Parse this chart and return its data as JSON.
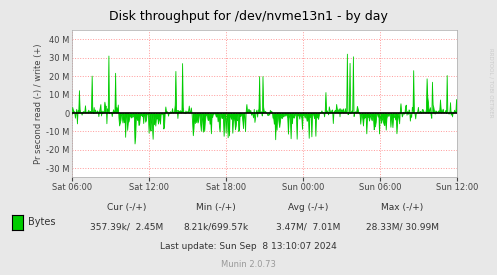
{
  "title": "Disk throughput for /dev/nvme13n1 - by day",
  "ylabel": "Pr second read (-) / write (+)",
  "bg_color": "#e8e8e8",
  "plot_bg_color": "#ffffff",
  "grid_color": "#ff9999",
  "line_color": "#00cc00",
  "zero_line_color": "#000000",
  "ylim": [
    -35000000,
    45000000
  ],
  "yticks": [
    -30000000,
    -20000000,
    -10000000,
    0,
    10000000,
    20000000,
    30000000,
    40000000
  ],
  "ytick_labels": [
    "-30 M",
    "-20 M",
    "-10 M",
    "0",
    "10 M",
    "20 M",
    "30 M",
    "40 M"
  ],
  "xtick_labels": [
    "Sat 06:00",
    "Sat 12:00",
    "Sat 18:00",
    "Sun 00:00",
    "Sun 06:00",
    "Sun 12:00"
  ],
  "legend_label": "Bytes",
  "cur_label": "Cur (-/+)",
  "cur_value": "357.39k/  2.45M",
  "min_label": "Min (-/+)",
  "min_value": "8.21k/699.57k",
  "avg_label": "Avg (-/+)",
  "avg_value": "3.47M/  7.01M",
  "max_label": "Max (-/+)",
  "max_value": "28.33M/ 30.99M",
  "last_update": "Last update: Sun Sep  8 13:10:07 2024",
  "munin_version": "Munin 2.0.73",
  "rrdtool_text": "RRDTOOL / TOBI OETIKER",
  "title_color": "#000000",
  "label_color": "#444444",
  "stats_color": "#333333",
  "munin_color": "#999999",
  "rrdtool_color": "#cccccc"
}
